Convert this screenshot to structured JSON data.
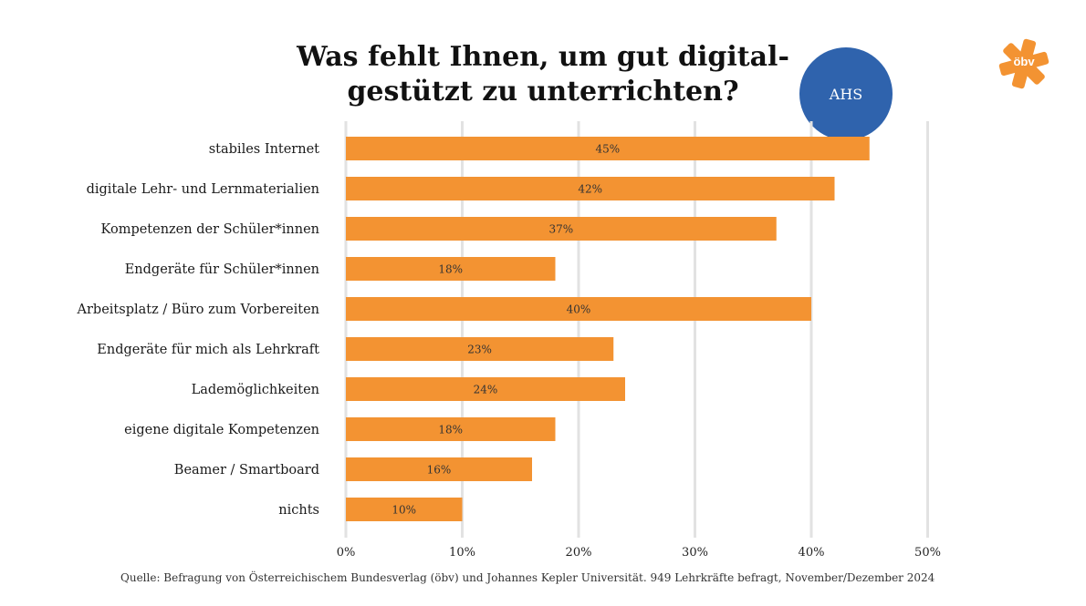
{
  "title": "Was fehlt Ihnen, um gut digital-gestützt zu unterrichten?",
  "badge": "AHS",
  "logo": {
    "text": "öbv",
    "icon": "star-logo-icon"
  },
  "source": "Quelle: Befragung von Österreichischem Bundesverlag (öbv) und Johannes Kepler Universität. 949 Lehrkräfte befragt, November/Dezember 2024",
  "colors": {
    "bar": "#f39332",
    "badge": "#2f63ad",
    "logo": "#f39332",
    "grid": "#e2e2e2"
  },
  "chart_data": {
    "type": "bar",
    "orientation": "horizontal",
    "title": "Was fehlt Ihnen, um gut digital-gestützt zu unterrichten?",
    "categories": [
      "stabiles Internet",
      "digitale Lehr- und Lernmaterialien",
      "Kompetenzen der Schüler*innen",
      "Endgeräte für Schüler*innen",
      "Arbeitsplatz / Büro zum Vorbereiten",
      "Endgeräte für mich als Lehrkraft",
      "Lademöglichkeiten",
      "eigene digitale Kompetenzen",
      "Beamer / Smartboard",
      "nichts"
    ],
    "values": [
      45,
      42,
      37,
      18,
      40,
      23,
      24,
      18,
      16,
      10
    ],
    "value_labels": [
      "45%",
      "42%",
      "37%",
      "18%",
      "40%",
      "23%",
      "24%",
      "18%",
      "16%",
      "10%"
    ],
    "xticks": [
      0,
      10,
      20,
      30,
      40,
      50
    ],
    "xtick_labels": [
      "0%",
      "10%",
      "20%",
      "30%",
      "40%",
      "50%"
    ],
    "xlim": [
      0,
      50
    ],
    "xlabel": "",
    "ylabel": "",
    "grid": true
  }
}
